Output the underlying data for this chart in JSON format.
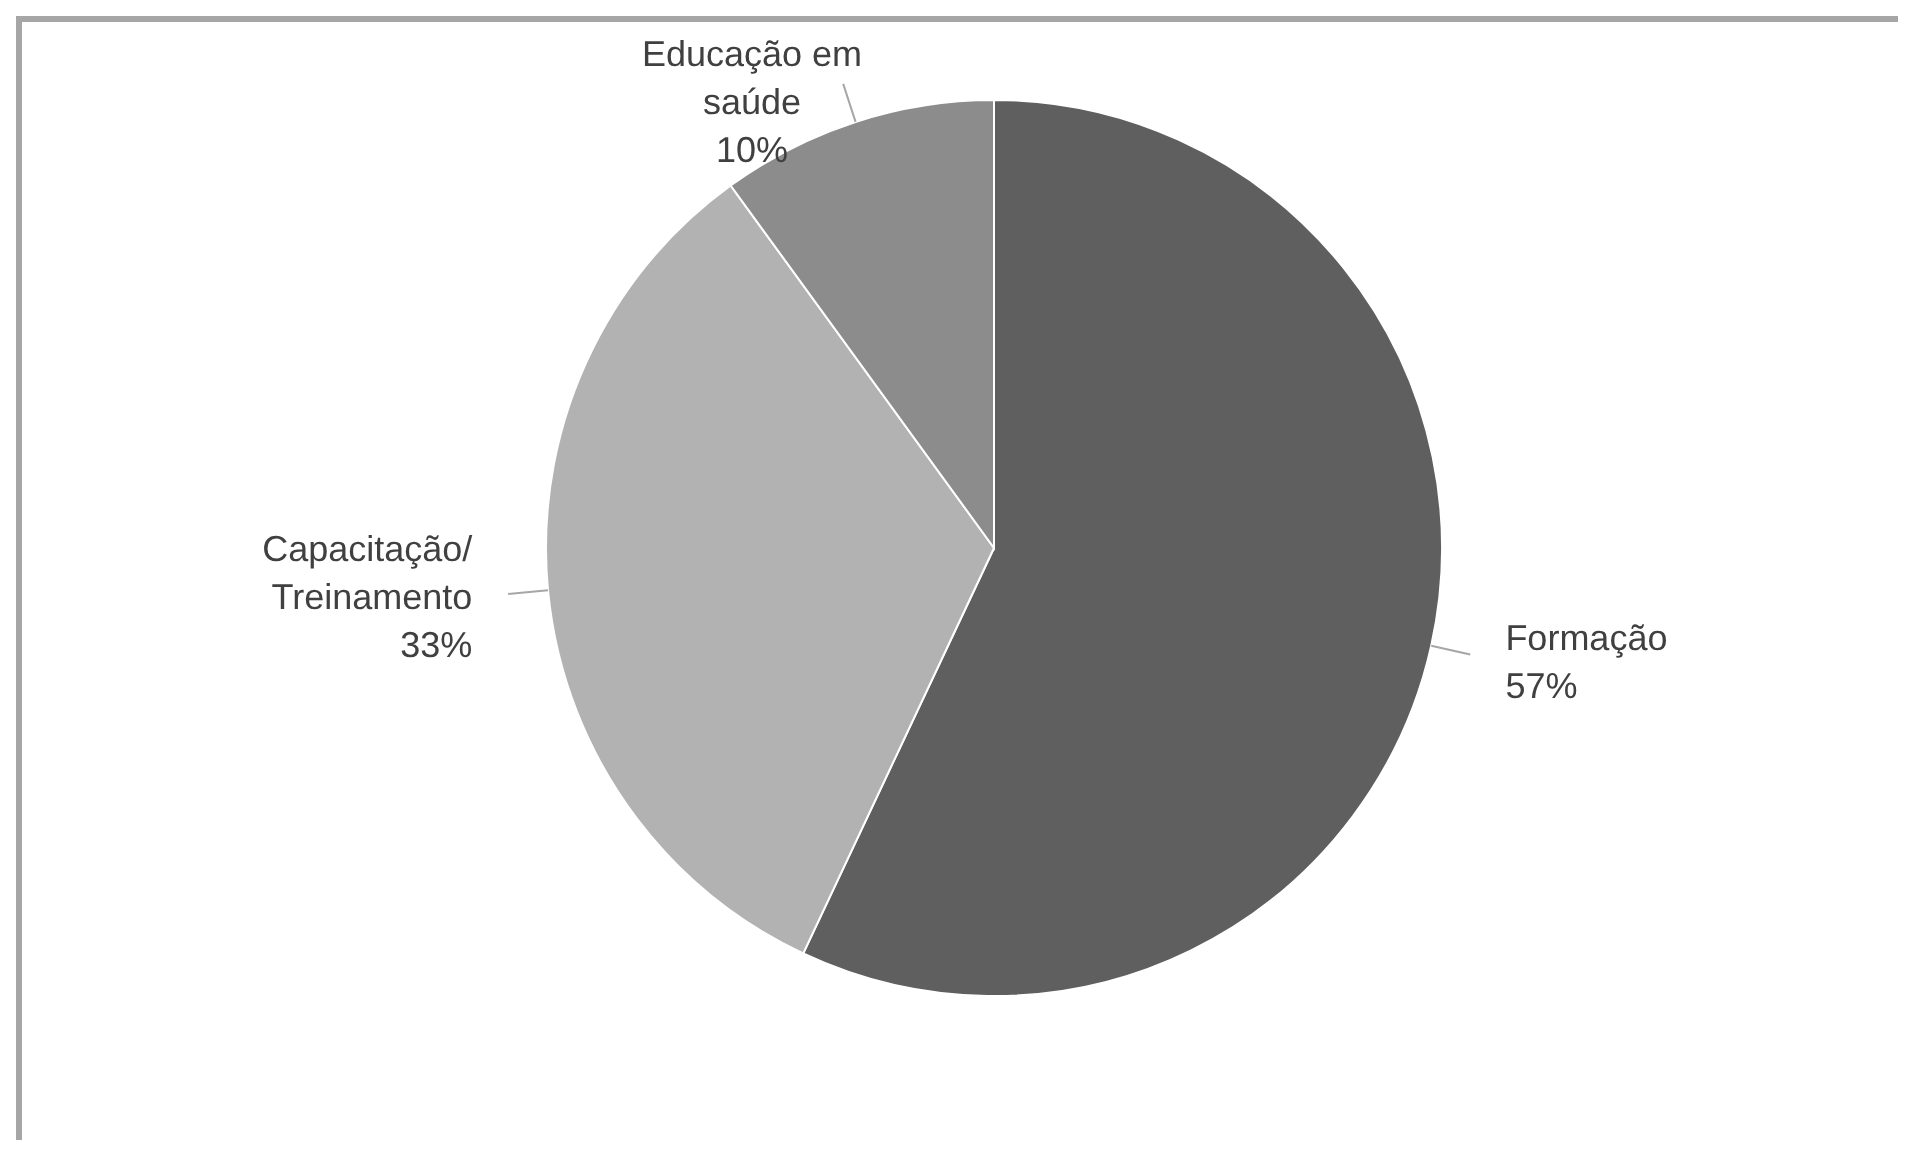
{
  "chart_data": {
    "type": "pie",
    "categories": [
      "Formação",
      "Capacitação/Treinamento",
      "Educação em saúde"
    ],
    "values": [
      57,
      33,
      10
    ],
    "colors": [
      "#5f5f5f",
      "#b2b2b2",
      "#8c8c8c"
    ],
    "value_labels": [
      "57%",
      "33%",
      "10%"
    ]
  }
}
